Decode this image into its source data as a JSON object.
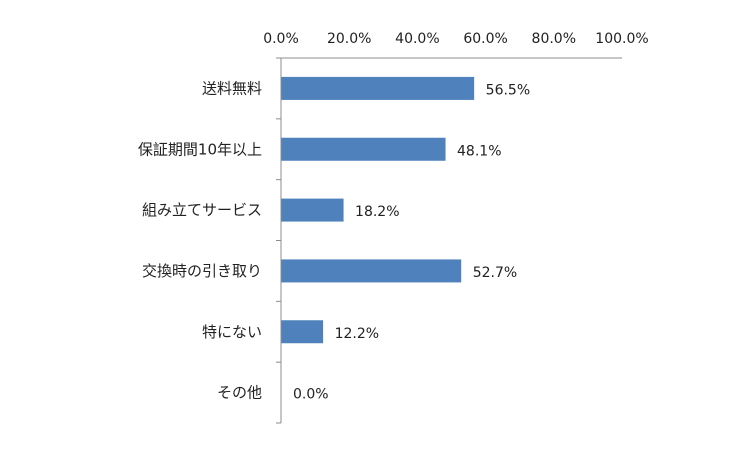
{
  "chart_data": {
    "type": "bar",
    "orientation": "horizontal",
    "categories": [
      "送料無料",
      "保証期間10年以上",
      "組み立てサービス",
      "交換時の引き取り",
      "特にない",
      "その他"
    ],
    "values": [
      56.5,
      48.1,
      18.2,
      52.7,
      12.2,
      0.0
    ],
    "data_labels": [
      "56.5%",
      "48.1%",
      "18.2%",
      "52.7%",
      "12.2%",
      "0.0%"
    ],
    "x_ticks": [
      0,
      20,
      40,
      60,
      80,
      100
    ],
    "x_tick_labels": [
      "0.0%",
      "20.0%",
      "40.0%",
      "60.0%",
      "80.0%",
      "100.0%"
    ],
    "xlim": [
      0,
      100
    ],
    "x_axis_position": "top",
    "title": "",
    "xlabel": "",
    "ylabel": "",
    "grid": false,
    "legend": "none",
    "bar_color": "#4f81bd"
  }
}
